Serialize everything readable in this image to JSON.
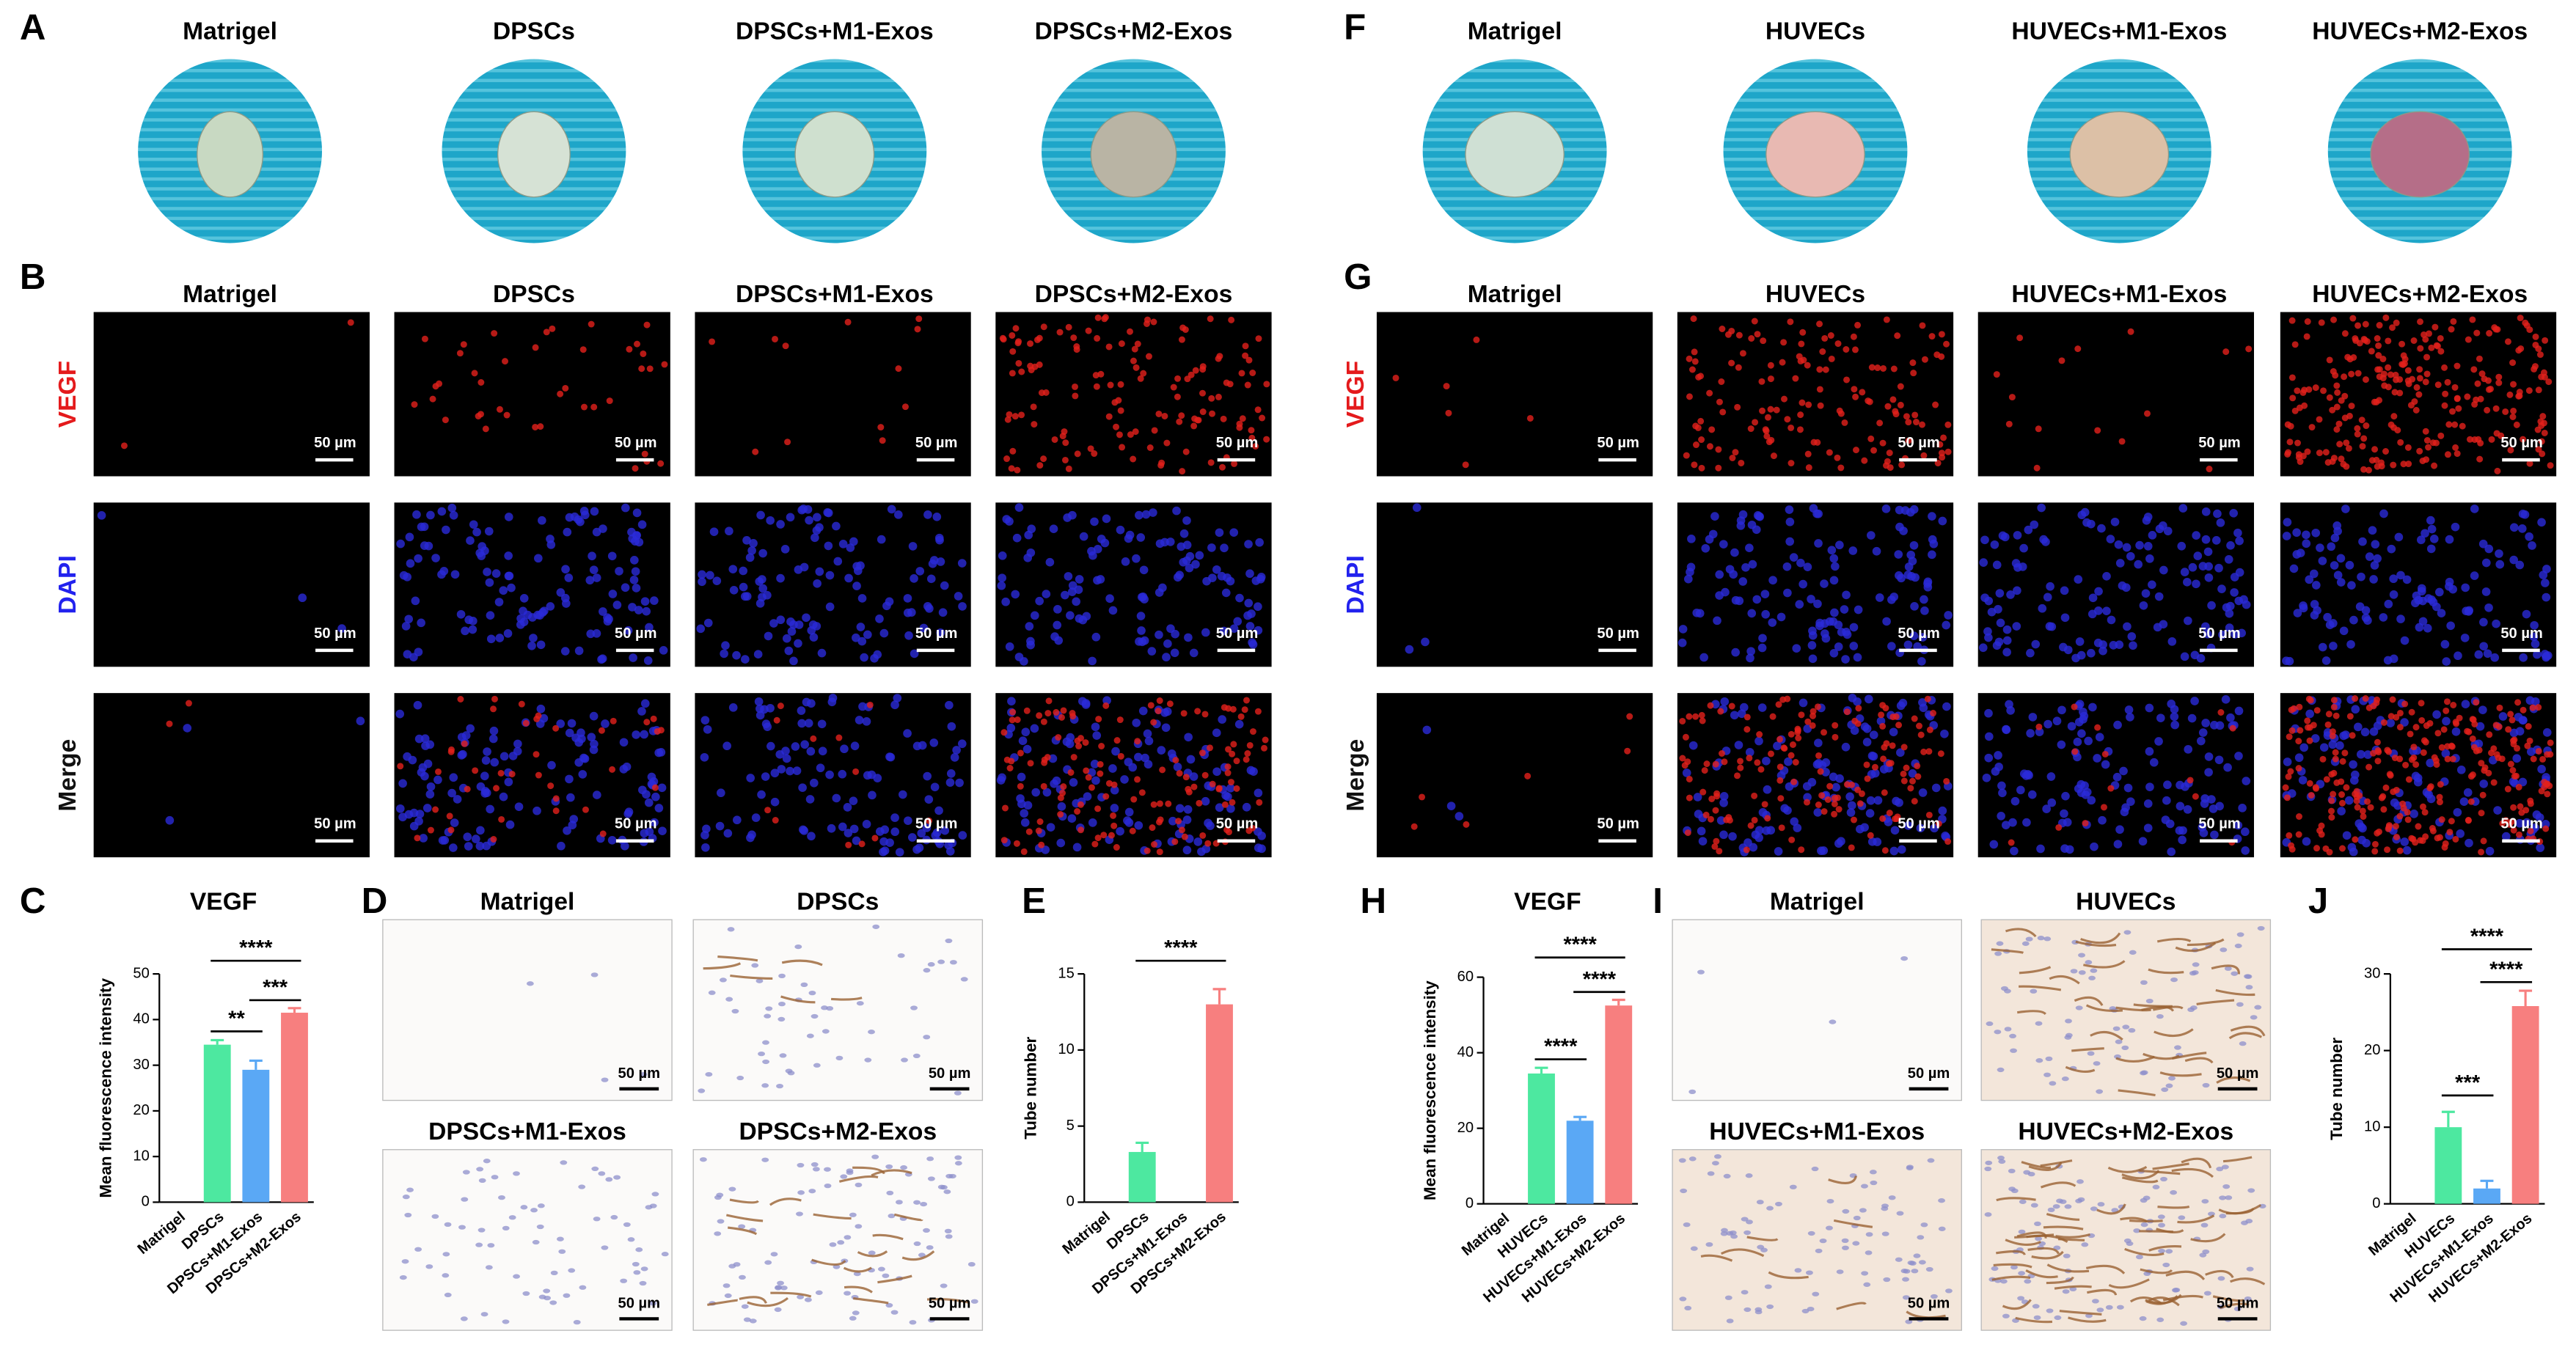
{
  "left": {
    "photo": {
      "label": "A",
      "groups": [
        "Matrigel",
        "DPSCs",
        "DPSCs+M1-Exos",
        "DPSCs+M2-Exos"
      ]
    },
    "fluorescence": {
      "label": "B",
      "groups": [
        "Matrigel",
        "DPSCs",
        "DPSCs+M1-Exos",
        "DPSCs+M2-Exos"
      ],
      "rows": [
        "VEGF",
        "DAPI",
        "Merge"
      ]
    },
    "ihc": {
      "label": "D",
      "groups": [
        "Matrigel",
        "DPSCs",
        "DPSCs+M1-Exos",
        "DPSCs+M2-Exos"
      ]
    }
  },
  "right": {
    "photo": {
      "label": "F",
      "groups": [
        "Matrigel",
        "HUVECs",
        "HUVECs+M1-Exos",
        "HUVECs+M2-Exos"
      ]
    },
    "fluorescence": {
      "label": "G",
      "groups": [
        "Matrigel",
        "HUVECs",
        "HUVECs+M1-Exos",
        "HUVECs+M2-Exos"
      ],
      "rows": [
        "VEGF",
        "DAPI",
        "Merge"
      ]
    },
    "ihc": {
      "label": "I",
      "groups": [
        "Matrigel",
        "HUVECs",
        "HUVECs+M1-Exos",
        "HUVECs+M2-Exos"
      ]
    }
  },
  "scale_bar": "50 µm",
  "chart_data": [
    {
      "type": "bar",
      "panel_label": "C",
      "title": "VEGF",
      "ylabel": "Mean fluorescence intensity",
      "categories": [
        "Matrigel",
        "DPSCs",
        "DPSCs+M1-Exos",
        "DPSCs+M2-Exos"
      ],
      "values": [
        0,
        34.5,
        29,
        41.5
      ],
      "errors": [
        0,
        1,
        2,
        1
      ],
      "colors": [
        "#cccccc",
        "#4de8a0",
        "#5aa8f5",
        "#f77f7f"
      ],
      "ylim": [
        0,
        50
      ],
      "yticks": [
        0,
        10,
        20,
        30,
        40,
        50
      ],
      "annotations": [
        "**",
        "***",
        "****"
      ]
    },
    {
      "type": "bar",
      "panel_label": "E",
      "ylabel": "Tube number",
      "categories": [
        "Matrigel",
        "DPSCs",
        "DPSCs+M1-Exos",
        "DPSCs+M2-Exos"
      ],
      "values": [
        0,
        3.3,
        0,
        13
      ],
      "errors": [
        0,
        0.6,
        0,
        1
      ],
      "colors": [
        "#cccccc",
        "#4de8a0",
        "#5aa8f5",
        "#f77f7f"
      ],
      "ylim": [
        0,
        15
      ],
      "yticks": [
        0,
        5,
        10,
        15
      ],
      "annotations": [
        "****"
      ]
    },
    {
      "type": "bar",
      "panel_label": "H",
      "title": "VEGF",
      "ylabel": "Mean fluorescence intensity",
      "categories": [
        "Matrigel",
        "HUVECs",
        "HUVECs+M1-Exos",
        "HUVECs+M2-Exos"
      ],
      "values": [
        0,
        34.5,
        22,
        52.5
      ],
      "errors": [
        0,
        1.5,
        1,
        1.5
      ],
      "colors": [
        "#cccccc",
        "#4de8a0",
        "#5aa8f5",
        "#f77f7f"
      ],
      "ylim": [
        0,
        60
      ],
      "yticks": [
        0,
        20,
        40,
        60
      ],
      "annotations": [
        "****",
        "****",
        "****"
      ]
    },
    {
      "type": "bar",
      "panel_label": "J",
      "ylabel": "Tube number",
      "categories": [
        "Matrigel",
        "HUVECs",
        "HUVECs+M1-Exos",
        "HUVECs+M2-Exos"
      ],
      "values": [
        0,
        10,
        2,
        25.8
      ],
      "errors": [
        0,
        2,
        1,
        2
      ],
      "colors": [
        "#cccccc",
        "#4de8a0",
        "#5aa8f5",
        "#f77f7f"
      ],
      "ylim": [
        0,
        30
      ],
      "yticks": [
        0,
        10,
        20,
        30
      ],
      "annotations": [
        "***",
        "****",
        "****"
      ]
    }
  ]
}
